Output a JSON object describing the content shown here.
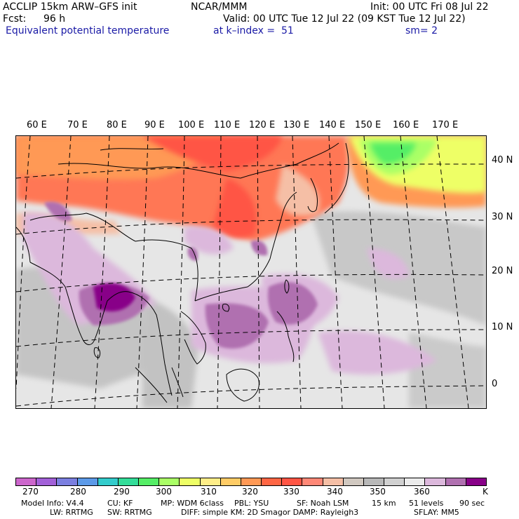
{
  "header": {
    "model": "ACCLIP 15km ARW–GFS init",
    "center": "NCAR/MMM",
    "init": "Init: 00 UTC Fri 08 Jul 22",
    "fcst_label": "Fcst:",
    "fcst_value": "96 h",
    "valid": "Valid: 00 UTC Tue 12 Jul 22 (09 KST Tue 12 Jul 22)",
    "field": "Equivalent potential temperature",
    "level": "at k–index =  51",
    "smoothing": "sm= 2"
  },
  "longitude_labels": [
    "60 E",
    "70 E",
    "80 E",
    "90 E",
    "100 E",
    "110 E",
    "120 E",
    "130 E",
    "140 E",
    "150 E",
    "160 E",
    "170 E"
  ],
  "latitude_labels": [
    "40 N",
    "30 N",
    "20 N",
    "10 N",
    "0"
  ],
  "colorbar": {
    "colors": [
      "#cc66cc",
      "#a260d8",
      "#7b7fe0",
      "#5c9ae8",
      "#33cccc",
      "#33dd99",
      "#55ee66",
      "#aaff66",
      "#eeff66",
      "#ffee88",
      "#ffcc66",
      "#ff9955",
      "#ff6644",
      "#ff5544",
      "#ff8877",
      "#f5bfa6",
      "#d0c8c0",
      "#b8b8b8",
      "#d0d0d0",
      "#ececec",
      "#dcb8dc",
      "#b070b0",
      "#880088"
    ],
    "tick_labels": [
      "270",
      "280",
      "290",
      "300",
      "310",
      "320",
      "330",
      "340",
      "350",
      "360"
    ],
    "unit": "K"
  },
  "footer": {
    "line1": [
      "Model Info: V4.4",
      "CU: KF",
      "MP: WDM 6class",
      "PBL: YSU",
      "SF: Noah LSM",
      "15 km",
      "51 levels",
      "90 sec"
    ],
    "line2": [
      "LW: RRTMG",
      "SW: RRTMG",
      "DIFF: simple KM: 2D Smagor DAMP: Rayleigh3",
      "SFLAY: MM5"
    ]
  }
}
